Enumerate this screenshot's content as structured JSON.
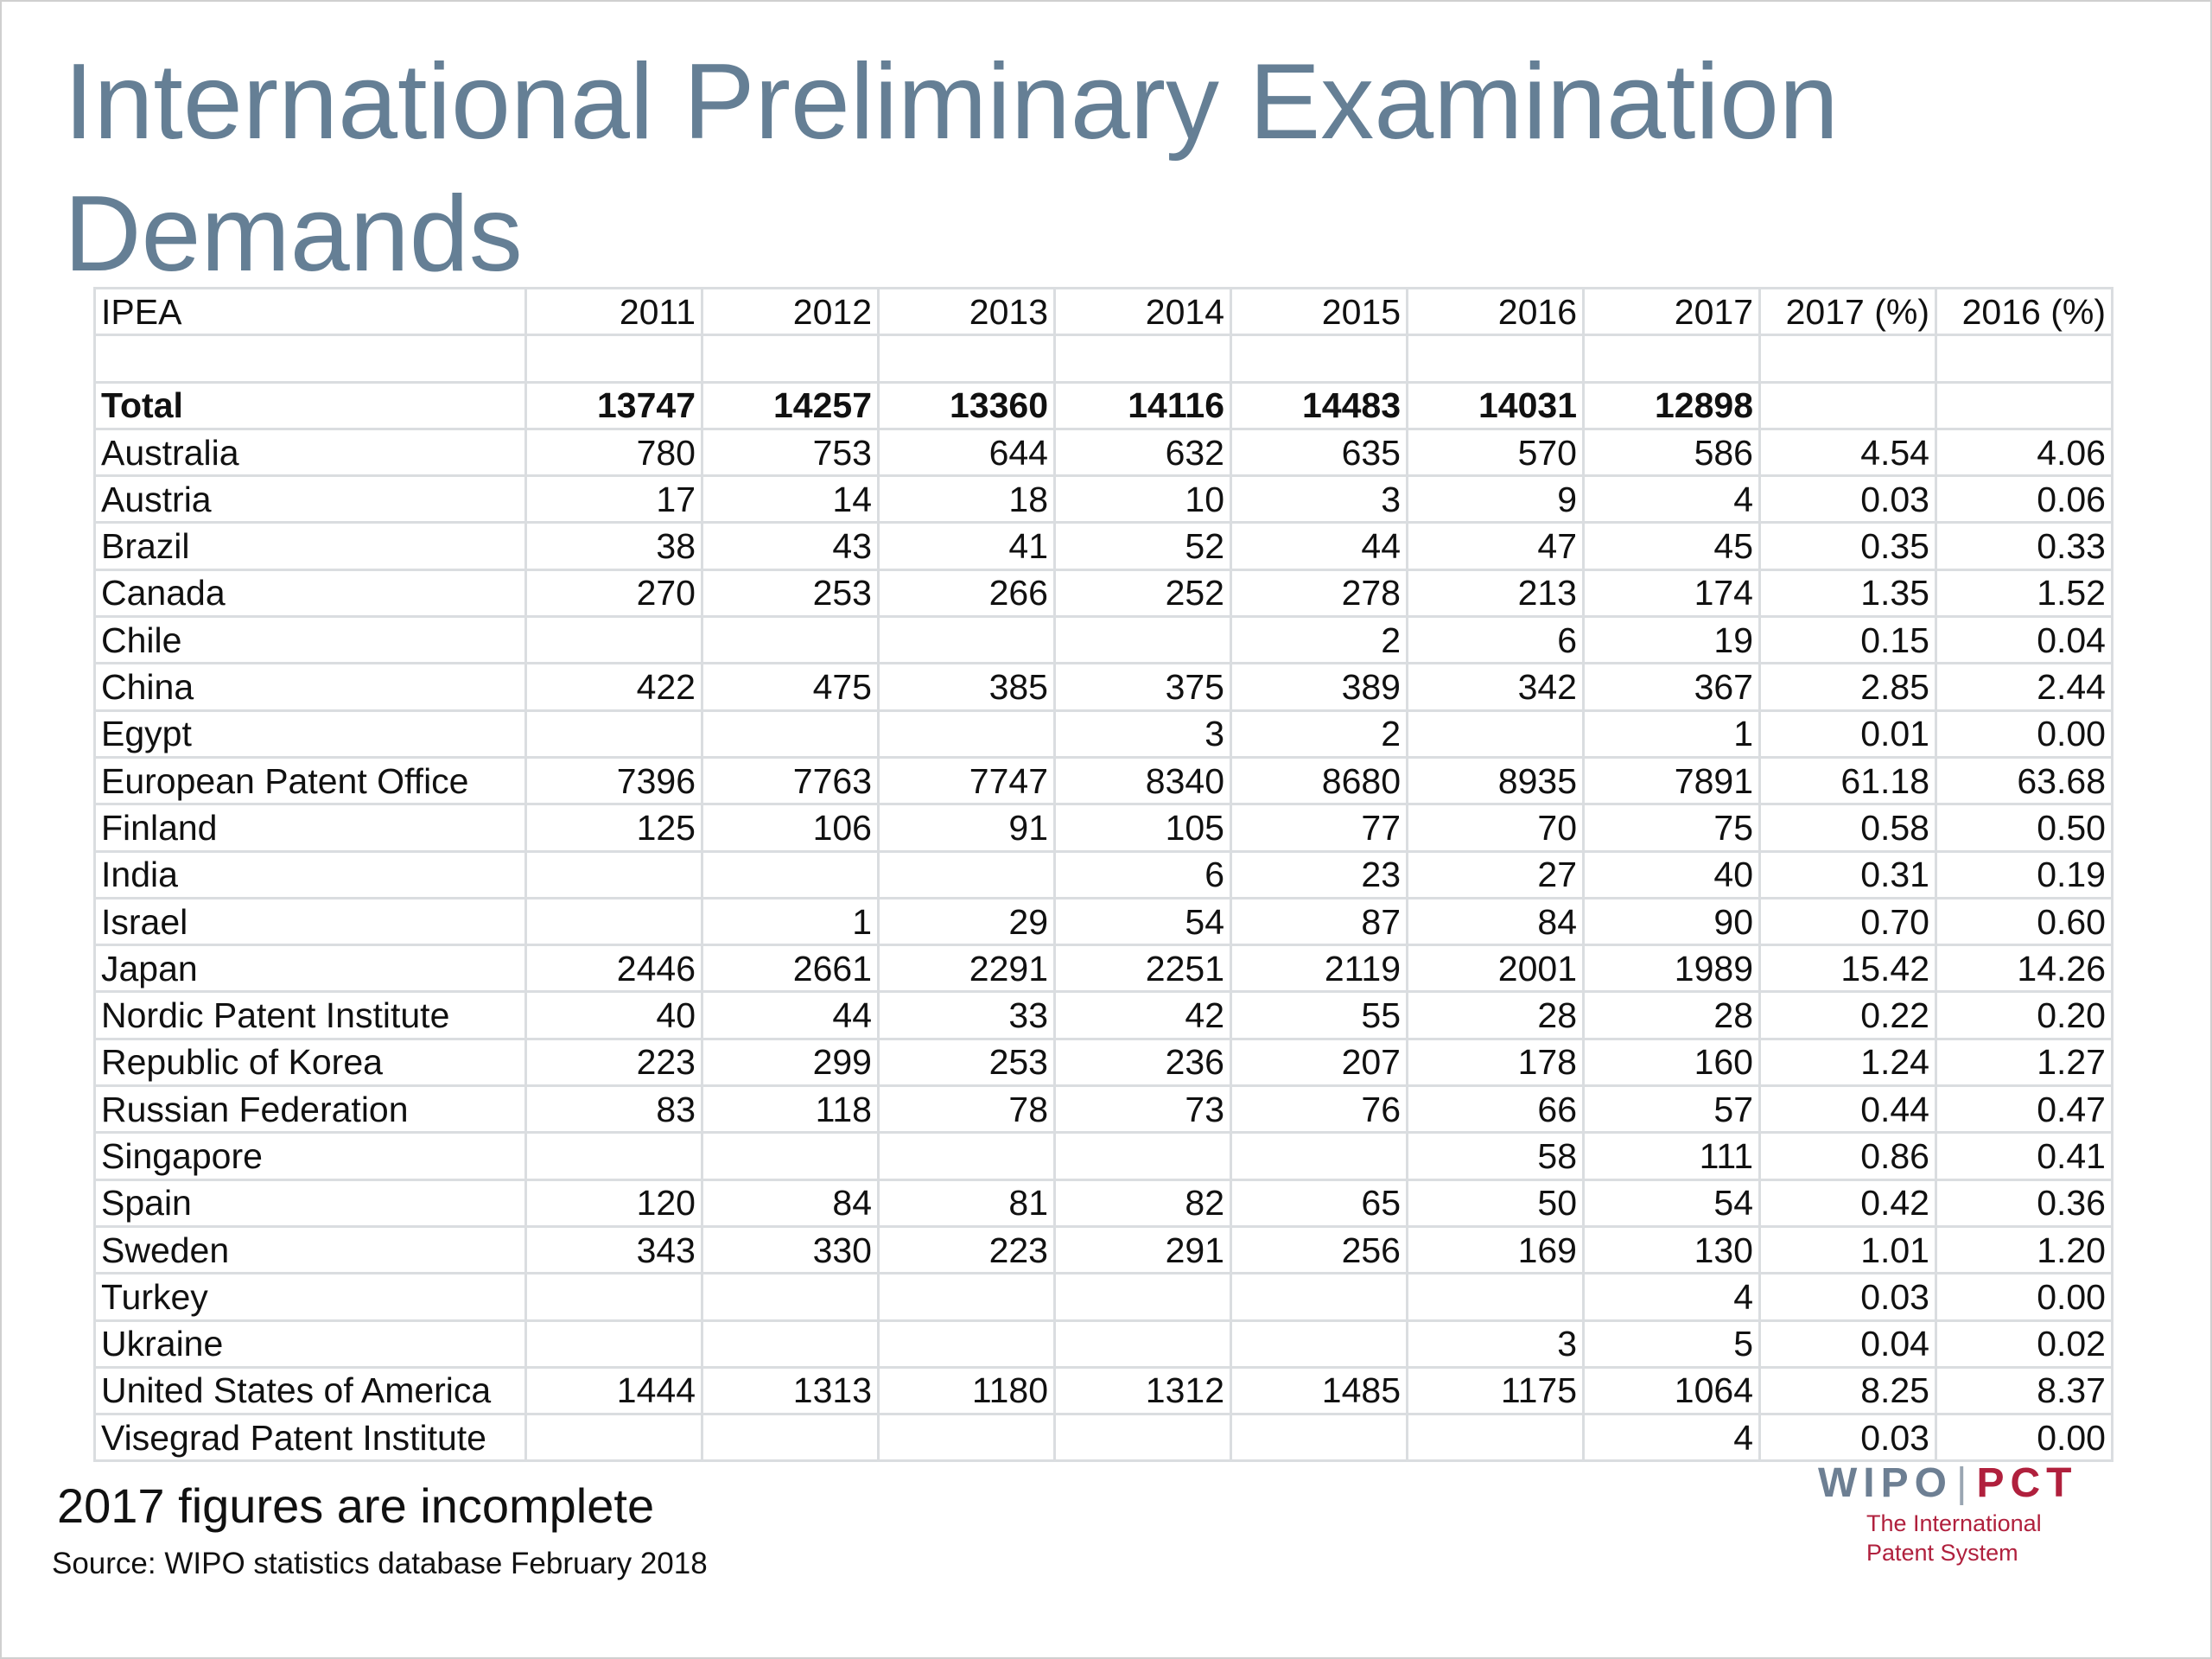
{
  "title": "International Preliminary Examination Demands",
  "table": {
    "headers": [
      "IPEA",
      "2011",
      "2012",
      "2013",
      "2014",
      "2015",
      "2016",
      "2017",
      "2017 (%)",
      "2016 (%)"
    ],
    "rows": [
      [
        "",
        "",
        "",
        "",
        "",
        "",
        "",
        "",
        "",
        ""
      ],
      [
        "Total",
        "13747",
        "14257",
        "13360",
        "14116",
        "14483",
        "14031",
        "12898",
        "",
        ""
      ],
      [
        "Australia",
        "780",
        "753",
        "644",
        "632",
        "635",
        "570",
        "586",
        "4.54",
        "4.06"
      ],
      [
        "Austria",
        "17",
        "14",
        "18",
        "10",
        "3",
        "9",
        "4",
        "0.03",
        "0.06"
      ],
      [
        "Brazil",
        "38",
        "43",
        "41",
        "52",
        "44",
        "47",
        "45",
        "0.35",
        "0.33"
      ],
      [
        "Canada",
        "270",
        "253",
        "266",
        "252",
        "278",
        "213",
        "174",
        "1.35",
        "1.52"
      ],
      [
        "Chile",
        "",
        "",
        "",
        "",
        "2",
        "6",
        "19",
        "0.15",
        "0.04"
      ],
      [
        "China",
        "422",
        "475",
        "385",
        "375",
        "389",
        "342",
        "367",
        "2.85",
        "2.44"
      ],
      [
        "Egypt",
        "",
        "",
        "",
        "3",
        "2",
        "",
        "1",
        "0.01",
        "0.00"
      ],
      [
        "European Patent Office",
        "7396",
        "7763",
        "7747",
        "8340",
        "8680",
        "8935",
        "7891",
        "61.18",
        "63.68"
      ],
      [
        "Finland",
        "125",
        "106",
        "91",
        "105",
        "77",
        "70",
        "75",
        "0.58",
        "0.50"
      ],
      [
        "India",
        "",
        "",
        "",
        "6",
        "23",
        "27",
        "40",
        "0.31",
        "0.19"
      ],
      [
        "Israel",
        "",
        "1",
        "29",
        "54",
        "87",
        "84",
        "90",
        "0.70",
        "0.60"
      ],
      [
        "Japan",
        "2446",
        "2661",
        "2291",
        "2251",
        "2119",
        "2001",
        "1989",
        "15.42",
        "14.26"
      ],
      [
        "Nordic Patent Institute",
        "40",
        "44",
        "33",
        "42",
        "55",
        "28",
        "28",
        "0.22",
        "0.20"
      ],
      [
        "Republic of Korea",
        "223",
        "299",
        "253",
        "236",
        "207",
        "178",
        "160",
        "1.24",
        "1.27"
      ],
      [
        "Russian Federation",
        "83",
        "118",
        "78",
        "73",
        "76",
        "66",
        "57",
        "0.44",
        "0.47"
      ],
      [
        "Singapore",
        "",
        "",
        "",
        "",
        "",
        "58",
        "111",
        "0.86",
        "0.41"
      ],
      [
        "Spain",
        "120",
        "84",
        "81",
        "82",
        "65",
        "50",
        "54",
        "0.42",
        "0.36"
      ],
      [
        "Sweden",
        "343",
        "330",
        "223",
        "291",
        "256",
        "169",
        "130",
        "1.01",
        "1.20"
      ],
      [
        "Turkey",
        "",
        "",
        "",
        "",
        "",
        "",
        "4",
        "0.03",
        "0.00"
      ],
      [
        "Ukraine",
        "",
        "",
        "",
        "",
        "",
        "3",
        "5",
        "0.04",
        "0.02"
      ],
      [
        "United States of America",
        "1444",
        "1313",
        "1180",
        "1312",
        "1485",
        "1175",
        "1064",
        "8.25",
        "8.37"
      ],
      [
        "Visegrad Patent Institute",
        "",
        "",
        "",
        "",
        "",
        "",
        "4",
        "0.03",
        "0.00"
      ]
    ]
  },
  "footnote": "2017 figures are incomplete",
  "source": "Source: WIPO statistics database  February 2018",
  "logo": {
    "left": "WIPO",
    "separator": "|",
    "right": "PCT",
    "tagline_1": "The International",
    "tagline_2": "Patent System"
  },
  "colors": {
    "title": "#657f95",
    "grid": "#dadde0",
    "logo_wipo": "#6d7f93",
    "logo_pct": "#b0203d"
  }
}
